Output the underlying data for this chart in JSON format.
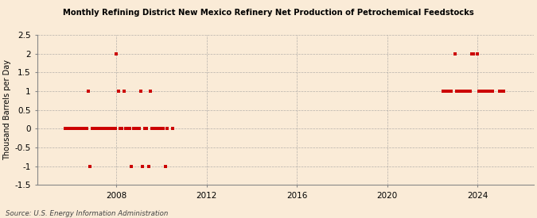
{
  "title": "Monthly Refining District New Mexico Refinery Net Production of Petrochemical Feedstocks",
  "ylabel": "Thousand Barrels per Day",
  "source": "Source: U.S. Energy Information Administration",
  "bg_color": "#faebd7",
  "marker_color": "#cc0000",
  "ylim": [
    -1.5,
    2.5
  ],
  "xlim_start": 2004.5,
  "xlim_end": 2026.5,
  "xticks": [
    2008,
    2012,
    2016,
    2020,
    2024
  ],
  "yticks": [
    -1.5,
    -1.0,
    -0.5,
    0.0,
    0.5,
    1.0,
    1.5,
    2.0,
    2.5
  ],
  "data_x": [
    2005.75,
    2005.83,
    2005.92,
    2006.0,
    2006.08,
    2006.17,
    2006.25,
    2006.33,
    2006.42,
    2006.5,
    2006.58,
    2006.67,
    2006.75,
    2006.83,
    2006.92,
    2007.0,
    2007.08,
    2007.17,
    2007.25,
    2007.33,
    2007.42,
    2007.5,
    2007.58,
    2007.67,
    2007.75,
    2007.83,
    2007.92,
    2007.95,
    2008.0,
    2008.08,
    2008.17,
    2008.25,
    2008.33,
    2008.42,
    2008.5,
    2008.58,
    2008.67,
    2008.75,
    2008.83,
    2008.92,
    2009.0,
    2009.08,
    2009.17,
    2009.25,
    2009.33,
    2009.42,
    2009.5,
    2009.58,
    2009.67,
    2009.75,
    2009.83,
    2009.92,
    2010.0,
    2010.08,
    2010.17,
    2010.25,
    2010.5,
    2022.5,
    2022.58,
    2022.67,
    2022.75,
    2022.83,
    2023.0,
    2023.08,
    2023.17,
    2023.25,
    2023.33,
    2023.42,
    2023.5,
    2023.58,
    2023.67,
    2023.75,
    2023.83,
    2024.0,
    2024.08,
    2024.17,
    2024.25,
    2024.33,
    2024.42,
    2024.5,
    2024.58,
    2024.67,
    2025.0,
    2025.08,
    2025.17
  ],
  "data_y": [
    0.0,
    0.0,
    0.0,
    0.0,
    0.0,
    0.0,
    0.0,
    0.0,
    0.0,
    0.0,
    0.0,
    0.0,
    1.0,
    -1.0,
    0.0,
    0.0,
    0.0,
    0.0,
    0.0,
    0.0,
    0.0,
    0.0,
    0.0,
    0.0,
    0.0,
    0.0,
    0.0,
    0.0,
    2.0,
    1.0,
    0.0,
    0.0,
    1.0,
    0.0,
    0.0,
    0.0,
    -1.0,
    0.0,
    0.0,
    0.0,
    0.0,
    1.0,
    -1.0,
    0.0,
    0.0,
    -1.0,
    1.0,
    0.0,
    0.0,
    0.0,
    0.0,
    0.0,
    0.0,
    0.0,
    -1.0,
    0.0,
    0.0,
    1.0,
    1.0,
    1.0,
    1.0,
    1.0,
    2.0,
    1.0,
    1.0,
    1.0,
    1.0,
    1.0,
    1.0,
    1.0,
    1.0,
    2.0,
    2.0,
    2.0,
    1.0,
    1.0,
    1.0,
    1.0,
    1.0,
    1.0,
    1.0,
    1.0,
    1.0,
    1.0,
    1.0
  ]
}
